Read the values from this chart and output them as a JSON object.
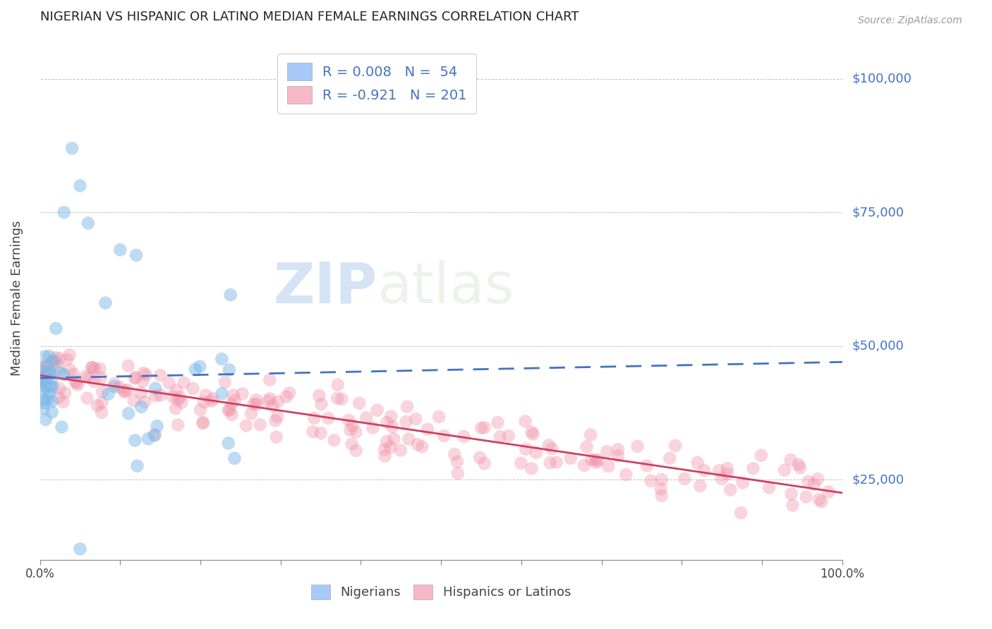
{
  "title": "NIGERIAN VS HISPANIC OR LATINO MEDIAN FEMALE EARNINGS CORRELATION CHART",
  "source_text": "Source: ZipAtlas.com",
  "ylabel": "Median Female Earnings",
  "xlim": [
    0,
    1
  ],
  "ylim": [
    10000,
    108000
  ],
  "yticks": [
    25000,
    50000,
    75000,
    100000
  ],
  "ytick_labels": [
    "$25,000",
    "$50,000",
    "$75,000",
    "$100,000"
  ],
  "watermark_zip": "ZIP",
  "watermark_atlas": "atlas",
  "blue_scatter_color": "#7db8e8",
  "pink_scatter_color": "#f090a8",
  "blue_line_color": "#4472c4",
  "pink_line_color": "#d04060",
  "blue_legend_box": "#a8c8f8",
  "pink_legend_box": "#f8b8c8",
  "grid_color": "#bbbbbb",
  "title_color": "#222222",
  "axis_label_color": "#444444",
  "ytick_color": "#4472c4",
  "background_color": "#ffffff",
  "legend_text_color": "#4472c4",
  "nigerian_N": 54,
  "hispanic_N": 201,
  "nig_intercept": 44000,
  "nig_slope": 3000,
  "his_intercept": 44500,
  "his_slope": -22000
}
